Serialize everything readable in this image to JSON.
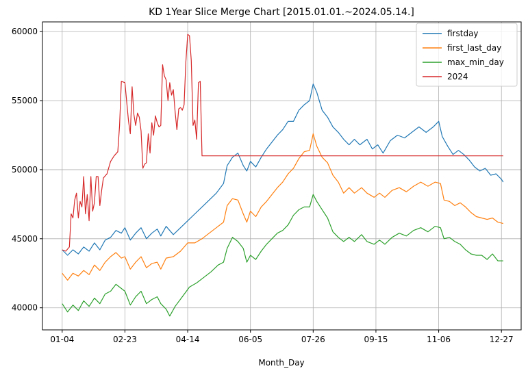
{
  "chart_data": {
    "type": "line",
    "title": "KD 1Year Slice Merge Chart [2015.01.01.~2024.05.14.]",
    "xlabel": "Month_Day",
    "ylabel": "",
    "x_ticks": [
      "01-04",
      "02-23",
      "04-14",
      "06-05",
      "07-26",
      "09-15",
      "11-06",
      "12-27"
    ],
    "x_tick_index": [
      0,
      35,
      70,
      105,
      140,
      175,
      210,
      245
    ],
    "x_range": [
      -11,
      256
    ],
    "y_ticks": [
      40000,
      45000,
      50000,
      55000,
      60000
    ],
    "ylim": [
      38400,
      60700
    ],
    "grid": true,
    "legend_position": "top-right",
    "series": [
      {
        "name": "firstday",
        "color": "#1f77b4",
        "points": [
          [
            0,
            44200
          ],
          [
            3,
            43800
          ],
          [
            6,
            44200
          ],
          [
            9,
            43900
          ],
          [
            12,
            44400
          ],
          [
            15,
            44100
          ],
          [
            18,
            44700
          ],
          [
            21,
            44200
          ],
          [
            24,
            44900
          ],
          [
            27,
            45100
          ],
          [
            30,
            45600
          ],
          [
            33,
            45400
          ],
          [
            35,
            45800
          ],
          [
            38,
            44900
          ],
          [
            41,
            45400
          ],
          [
            44,
            45800
          ],
          [
            47,
            45000
          ],
          [
            50,
            45400
          ],
          [
            53,
            45700
          ],
          [
            55,
            45200
          ],
          [
            58,
            45900
          ],
          [
            62,
            45300
          ],
          [
            66,
            45800
          ],
          [
            70,
            46300
          ],
          [
            74,
            46800
          ],
          [
            78,
            47300
          ],
          [
            82,
            47800
          ],
          [
            86,
            48300
          ],
          [
            90,
            49000
          ],
          [
            92,
            50300
          ],
          [
            95,
            50900
          ],
          [
            98,
            51200
          ],
          [
            101,
            50300
          ],
          [
            103,
            49900
          ],
          [
            105,
            50600
          ],
          [
            108,
            50200
          ],
          [
            111,
            50900
          ],
          [
            114,
            51500
          ],
          [
            117,
            52000
          ],
          [
            120,
            52500
          ],
          [
            123,
            52900
          ],
          [
            126,
            53500
          ],
          [
            129,
            53500
          ],
          [
            132,
            54300
          ],
          [
            135,
            54700
          ],
          [
            138,
            55000
          ],
          [
            140,
            56200
          ],
          [
            142,
            55600
          ],
          [
            145,
            54300
          ],
          [
            148,
            53800
          ],
          [
            151,
            53100
          ],
          [
            154,
            52700
          ],
          [
            157,
            52200
          ],
          [
            160,
            51800
          ],
          [
            163,
            52200
          ],
          [
            166,
            51800
          ],
          [
            170,
            52200
          ],
          [
            173,
            51500
          ],
          [
            176,
            51800
          ],
          [
            179,
            51200
          ],
          [
            183,
            52100
          ],
          [
            187,
            52500
          ],
          [
            191,
            52300
          ],
          [
            195,
            52700
          ],
          [
            199,
            53100
          ],
          [
            203,
            52700
          ],
          [
            207,
            53100
          ],
          [
            210,
            53500
          ],
          [
            212,
            52400
          ],
          [
            215,
            51700
          ],
          [
            218,
            51100
          ],
          [
            221,
            51400
          ],
          [
            224,
            51100
          ],
          [
            227,
            50700
          ],
          [
            230,
            50200
          ],
          [
            233,
            49900
          ],
          [
            236,
            50100
          ],
          [
            239,
            49600
          ],
          [
            242,
            49700
          ],
          [
            245,
            49300
          ],
          [
            246,
            49100
          ]
        ]
      },
      {
        "name": "first_last_day",
        "color": "#ff7f0e",
        "points": [
          [
            0,
            42500
          ],
          [
            3,
            42000
          ],
          [
            6,
            42500
          ],
          [
            9,
            42300
          ],
          [
            12,
            42700
          ],
          [
            15,
            42400
          ],
          [
            18,
            43100
          ],
          [
            21,
            42700
          ],
          [
            24,
            43300
          ],
          [
            27,
            43700
          ],
          [
            30,
            44000
          ],
          [
            33,
            43600
          ],
          [
            35,
            43700
          ],
          [
            38,
            42800
          ],
          [
            41,
            43300
          ],
          [
            44,
            43700
          ],
          [
            47,
            42900
          ],
          [
            50,
            43200
          ],
          [
            53,
            43300
          ],
          [
            55,
            42800
          ],
          [
            58,
            43600
          ],
          [
            62,
            43700
          ],
          [
            66,
            44100
          ],
          [
            70,
            44700
          ],
          [
            74,
            44700
          ],
          [
            78,
            45000
          ],
          [
            82,
            45400
          ],
          [
            86,
            45800
          ],
          [
            90,
            46200
          ],
          [
            92,
            47400
          ],
          [
            95,
            47900
          ],
          [
            98,
            47800
          ],
          [
            101,
            46800
          ],
          [
            103,
            46200
          ],
          [
            105,
            47000
          ],
          [
            108,
            46600
          ],
          [
            111,
            47300
          ],
          [
            114,
            47700
          ],
          [
            117,
            48200
          ],
          [
            120,
            48700
          ],
          [
            123,
            49100
          ],
          [
            126,
            49700
          ],
          [
            129,
            50100
          ],
          [
            132,
            50800
          ],
          [
            135,
            51300
          ],
          [
            138,
            51400
          ],
          [
            140,
            52600
          ],
          [
            142,
            51700
          ],
          [
            145,
            50900
          ],
          [
            148,
            50500
          ],
          [
            151,
            49600
          ],
          [
            154,
            49100
          ],
          [
            157,
            48300
          ],
          [
            160,
            48700
          ],
          [
            163,
            48300
          ],
          [
            167,
            48700
          ],
          [
            170,
            48300
          ],
          [
            174,
            48000
          ],
          [
            177,
            48300
          ],
          [
            180,
            48000
          ],
          [
            184,
            48500
          ],
          [
            188,
            48700
          ],
          [
            192,
            48400
          ],
          [
            196,
            48800
          ],
          [
            200,
            49100
          ],
          [
            204,
            48800
          ],
          [
            208,
            49100
          ],
          [
            211,
            49000
          ],
          [
            213,
            47800
          ],
          [
            216,
            47700
          ],
          [
            219,
            47400
          ],
          [
            222,
            47600
          ],
          [
            225,
            47300
          ],
          [
            228,
            46900
          ],
          [
            231,
            46600
          ],
          [
            234,
            46500
          ],
          [
            237,
            46400
          ],
          [
            240,
            46500
          ],
          [
            243,
            46200
          ],
          [
            246,
            46100
          ]
        ]
      },
      {
        "name": "max_min_day",
        "color": "#2ca02c",
        "points": [
          [
            0,
            40300
          ],
          [
            3,
            39700
          ],
          [
            6,
            40200
          ],
          [
            9,
            39800
          ],
          [
            12,
            40500
          ],
          [
            15,
            40100
          ],
          [
            18,
            40700
          ],
          [
            21,
            40300
          ],
          [
            24,
            41000
          ],
          [
            27,
            41200
          ],
          [
            30,
            41700
          ],
          [
            33,
            41400
          ],
          [
            35,
            41200
          ],
          [
            38,
            40200
          ],
          [
            41,
            40800
          ],
          [
            44,
            41200
          ],
          [
            47,
            40300
          ],
          [
            50,
            40600
          ],
          [
            53,
            40800
          ],
          [
            55,
            40300
          ],
          [
            58,
            39900
          ],
          [
            60,
            39400
          ],
          [
            63,
            40100
          ],
          [
            67,
            40800
          ],
          [
            71,
            41500
          ],
          [
            75,
            41800
          ],
          [
            79,
            42200
          ],
          [
            83,
            42600
          ],
          [
            87,
            43100
          ],
          [
            90,
            43300
          ],
          [
            92,
            44300
          ],
          [
            95,
            45100
          ],
          [
            98,
            44800
          ],
          [
            101,
            44300
          ],
          [
            103,
            43300
          ],
          [
            105,
            43800
          ],
          [
            108,
            43500
          ],
          [
            111,
            44100
          ],
          [
            114,
            44600
          ],
          [
            117,
            45000
          ],
          [
            120,
            45400
          ],
          [
            123,
            45600
          ],
          [
            126,
            46000
          ],
          [
            129,
            46700
          ],
          [
            132,
            47100
          ],
          [
            135,
            47300
          ],
          [
            138,
            47300
          ],
          [
            140,
            48200
          ],
          [
            142,
            47700
          ],
          [
            145,
            47100
          ],
          [
            148,
            46500
          ],
          [
            151,
            45500
          ],
          [
            154,
            45100
          ],
          [
            157,
            44800
          ],
          [
            160,
            45100
          ],
          [
            163,
            44800
          ],
          [
            167,
            45300
          ],
          [
            170,
            44800
          ],
          [
            174,
            44600
          ],
          [
            177,
            44900
          ],
          [
            180,
            44600
          ],
          [
            184,
            45100
          ],
          [
            188,
            45400
          ],
          [
            192,
            45200
          ],
          [
            196,
            45600
          ],
          [
            200,
            45800
          ],
          [
            204,
            45500
          ],
          [
            208,
            45900
          ],
          [
            211,
            45800
          ],
          [
            213,
            45000
          ],
          [
            216,
            45100
          ],
          [
            219,
            44800
          ],
          [
            222,
            44600
          ],
          [
            225,
            44200
          ],
          [
            228,
            43900
          ],
          [
            231,
            43800
          ],
          [
            234,
            43800
          ],
          [
            237,
            43500
          ],
          [
            240,
            43900
          ],
          [
            243,
            43400
          ],
          [
            246,
            43400
          ]
        ]
      },
      {
        "name": "2024",
        "color": "#d62728",
        "points": [
          [
            0,
            44200
          ],
          [
            2,
            44100
          ],
          [
            4,
            44400
          ],
          [
            5,
            46800
          ],
          [
            6,
            46500
          ],
          [
            7,
            47800
          ],
          [
            8,
            48300
          ],
          [
            9,
            46500
          ],
          [
            10,
            47700
          ],
          [
            11,
            47300
          ],
          [
            12,
            49500
          ],
          [
            13,
            46800
          ],
          [
            14,
            48200
          ],
          [
            15,
            46300
          ],
          [
            16,
            49500
          ],
          [
            17,
            47000
          ],
          [
            18,
            47600
          ],
          [
            19,
            49500
          ],
          [
            20,
            49500
          ],
          [
            21,
            47400
          ],
          [
            22,
            48500
          ],
          [
            23,
            49400
          ],
          [
            25,
            49700
          ],
          [
            27,
            50600
          ],
          [
            29,
            51000
          ],
          [
            31,
            51300
          ],
          [
            32,
            53200
          ],
          [
            33,
            56400
          ],
          [
            35,
            56300
          ],
          [
            37,
            53500
          ],
          [
            38,
            52600
          ],
          [
            39,
            56000
          ],
          [
            40,
            54000
          ],
          [
            41,
            53200
          ],
          [
            42,
            54100
          ],
          [
            43,
            53800
          ],
          [
            44,
            52800
          ],
          [
            45,
            50100
          ],
          [
            46,
            50400
          ],
          [
            47,
            50500
          ],
          [
            48,
            52600
          ],
          [
            49,
            51200
          ],
          [
            50,
            53400
          ],
          [
            51,
            52500
          ],
          [
            52,
            53900
          ],
          [
            53,
            53400
          ],
          [
            54,
            53100
          ],
          [
            55,
            53200
          ],
          [
            56,
            57600
          ],
          [
            57,
            56800
          ],
          [
            58,
            56500
          ],
          [
            59,
            55000
          ],
          [
            60,
            56300
          ],
          [
            61,
            55400
          ],
          [
            62,
            55800
          ],
          [
            63,
            54200
          ],
          [
            64,
            52900
          ],
          [
            65,
            54400
          ],
          [
            66,
            54500
          ],
          [
            67,
            54300
          ],
          [
            68,
            54700
          ],
          [
            69,
            57800
          ],
          [
            70,
            59800
          ],
          [
            71,
            59700
          ],
          [
            72,
            57900
          ],
          [
            73,
            53200
          ],
          [
            74,
            53600
          ],
          [
            75,
            52200
          ],
          [
            76,
            56300
          ],
          [
            77,
            56400
          ],
          [
            78,
            51000
          ],
          [
            80,
            51000
          ],
          [
            100,
            51000
          ],
          [
            140,
            51000
          ],
          [
            200,
            51000
          ],
          [
            246,
            51000
          ]
        ]
      }
    ]
  }
}
